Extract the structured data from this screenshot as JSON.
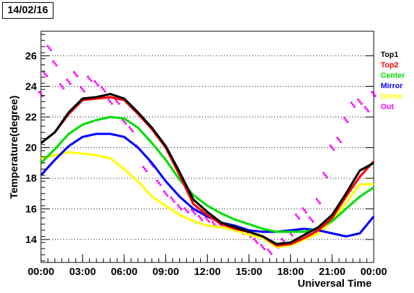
{
  "header": {
    "date": "14/02/16"
  },
  "chart_data": {
    "type": "line",
    "title": "",
    "xlabel": "Universal Time",
    "ylabel": "Temperature(degree)",
    "xlim": [
      0,
      24
    ],
    "ylim": [
      12.5,
      27.6
    ],
    "grid": "horizontal dotted",
    "legend_position": "right",
    "x_ticks": [
      0,
      3,
      6,
      9,
      12,
      15,
      18,
      21,
      24
    ],
    "x_tick_labels": [
      "00:00",
      "03:00",
      "06:00",
      "09:00",
      "12:00",
      "15:00",
      "18:00",
      "21:00",
      "00:00"
    ],
    "y_ticks": [
      14,
      16,
      18,
      20,
      22,
      24,
      26
    ],
    "y_tick_labels": [
      "14",
      "16",
      "18",
      "20",
      "22",
      "24",
      "26"
    ],
    "series": [
      {
        "name": "Top1",
        "color": "#000000",
        "points": [
          [
            0,
            20.3
          ],
          [
            1,
            21.0
          ],
          [
            2,
            22.3
          ],
          [
            3,
            23.2
          ],
          [
            4,
            23.3
          ],
          [
            5,
            23.5
          ],
          [
            6,
            23.2
          ],
          [
            7,
            22.3
          ],
          [
            8,
            21.3
          ],
          [
            9,
            20.1
          ],
          [
            10,
            18.4
          ],
          [
            11,
            16.6
          ],
          [
            12,
            15.8
          ],
          [
            13,
            15.1
          ],
          [
            14,
            14.8
          ],
          [
            15,
            14.5
          ],
          [
            16,
            14.2
          ],
          [
            17,
            13.7
          ],
          [
            18,
            13.8
          ],
          [
            19,
            14.3
          ],
          [
            20,
            14.8
          ],
          [
            21,
            15.6
          ],
          [
            22,
            17.0
          ],
          [
            23,
            18.5
          ],
          [
            24,
            19.0
          ]
        ]
      },
      {
        "name": "Top2",
        "color": "#ff0000",
        "points": [
          [
            0,
            20.3
          ],
          [
            1,
            21.0
          ],
          [
            2,
            22.2
          ],
          [
            3,
            23.1
          ],
          [
            4,
            23.2
          ],
          [
            5,
            23.3
          ],
          [
            6,
            23.1
          ],
          [
            7,
            22.2
          ],
          [
            8,
            21.2
          ],
          [
            9,
            20.0
          ],
          [
            10,
            18.2
          ],
          [
            11,
            16.3
          ],
          [
            12,
            15.6
          ],
          [
            13,
            15.0
          ],
          [
            14,
            14.7
          ],
          [
            15,
            14.5
          ],
          [
            16,
            14.2
          ],
          [
            17,
            13.6
          ],
          [
            18,
            13.7
          ],
          [
            19,
            14.1
          ],
          [
            20,
            14.6
          ],
          [
            21,
            15.4
          ],
          [
            22,
            16.8
          ],
          [
            23,
            18.1
          ],
          [
            24,
            19.1
          ]
        ]
      },
      {
        "name": "Center",
        "color": "#00dd00",
        "points": [
          [
            0,
            19.0
          ],
          [
            1,
            19.9
          ],
          [
            2,
            20.9
          ],
          [
            3,
            21.5
          ],
          [
            4,
            21.8
          ],
          [
            5,
            22.0
          ],
          [
            6,
            21.9
          ],
          [
            7,
            21.3
          ],
          [
            8,
            20.3
          ],
          [
            9,
            19.2
          ],
          [
            10,
            17.9
          ],
          [
            11,
            16.9
          ],
          [
            12,
            16.2
          ],
          [
            13,
            15.7
          ],
          [
            14,
            15.3
          ],
          [
            15,
            15.0
          ],
          [
            16,
            14.7
          ],
          [
            17,
            14.5
          ],
          [
            18,
            14.5
          ],
          [
            19,
            14.5
          ],
          [
            20,
            14.7
          ],
          [
            21,
            15.2
          ],
          [
            22,
            16.0
          ],
          [
            23,
            16.8
          ],
          [
            24,
            17.4
          ]
        ]
      },
      {
        "name": "Mirror",
        "color": "#0000ff",
        "points": [
          [
            0,
            18.2
          ],
          [
            1,
            19.2
          ],
          [
            2,
            20.1
          ],
          [
            3,
            20.7
          ],
          [
            4,
            20.9
          ],
          [
            5,
            20.9
          ],
          [
            6,
            20.7
          ],
          [
            7,
            20.0
          ],
          [
            8,
            19.0
          ],
          [
            9,
            17.8
          ],
          [
            10,
            16.8
          ],
          [
            11,
            16.0
          ],
          [
            12,
            15.5
          ],
          [
            13,
            15.1
          ],
          [
            14,
            14.9
          ],
          [
            15,
            14.6
          ],
          [
            16,
            14.5
          ],
          [
            17,
            14.5
          ],
          [
            18,
            14.6
          ],
          [
            19,
            14.7
          ],
          [
            20,
            14.6
          ],
          [
            21,
            14.4
          ],
          [
            22,
            14.2
          ],
          [
            23,
            14.4
          ],
          [
            24,
            15.5
          ]
        ]
      },
      {
        "name": "Dome",
        "color": "#ffff00",
        "points": [
          [
            0,
            19.3
          ],
          [
            1,
            19.5
          ],
          [
            2,
            19.7
          ],
          [
            3,
            19.6
          ],
          [
            4,
            19.5
          ],
          [
            5,
            19.3
          ],
          [
            6,
            18.6
          ],
          [
            7,
            17.8
          ],
          [
            8,
            16.8
          ],
          [
            9,
            16.2
          ],
          [
            10,
            15.6
          ],
          [
            11,
            15.2
          ],
          [
            12,
            14.9
          ],
          [
            13,
            14.8
          ],
          [
            14,
            14.6
          ],
          [
            15,
            14.3
          ],
          [
            16,
            14.1
          ],
          [
            17,
            13.5
          ],
          [
            18,
            13.6
          ],
          [
            19,
            14.0
          ],
          [
            20,
            14.4
          ],
          [
            21,
            15.2
          ],
          [
            22,
            16.4
          ],
          [
            23,
            17.6
          ],
          [
            24,
            17.6
          ]
        ]
      },
      {
        "name": "Out",
        "color": "#ff00ff",
        "style": "scatter",
        "points": [
          [
            0,
            23.5
          ],
          [
            0.3,
            24.8
          ],
          [
            0.6,
            26.5
          ],
          [
            1,
            25.5
          ],
          [
            1.5,
            24.0
          ],
          [
            2,
            24.3
          ],
          [
            2.5,
            24.8
          ],
          [
            3,
            23.8
          ],
          [
            3.5,
            24.5
          ],
          [
            4,
            24.2
          ],
          [
            4.5,
            23.8
          ],
          [
            5,
            23.0
          ],
          [
            5.5,
            23.0
          ],
          [
            6,
            21.7
          ],
          [
            6.5,
            21.2
          ],
          [
            7,
            20.0
          ],
          [
            7.5,
            18.6
          ],
          [
            8,
            18.9
          ],
          [
            8.5,
            17.7
          ],
          [
            9,
            17.0
          ],
          [
            9.5,
            16.6
          ],
          [
            10,
            16.1
          ],
          [
            10.5,
            15.9
          ],
          [
            11,
            15.8
          ],
          [
            11.5,
            15.4
          ],
          [
            12,
            15.3
          ],
          [
            12.5,
            15.0
          ],
          [
            13,
            14.9
          ],
          [
            13.5,
            14.9
          ],
          [
            14,
            14.7
          ],
          [
            14.5,
            14.5
          ],
          [
            15,
            14.3
          ],
          [
            15.5,
            13.9
          ],
          [
            16,
            13.5
          ],
          [
            16.5,
            13.2
          ],
          [
            17,
            13.6
          ],
          [
            17.5,
            13.9
          ],
          [
            18,
            14.4
          ],
          [
            18.5,
            15.5
          ],
          [
            19,
            15.9
          ],
          [
            19.5,
            15.3
          ],
          [
            20,
            16.5
          ],
          [
            20.5,
            18.2
          ],
          [
            21,
            20.0
          ],
          [
            21.5,
            20.5
          ],
          [
            22,
            21.8
          ],
          [
            22.5,
            22.8
          ],
          [
            23,
            23.0
          ],
          [
            23.5,
            22.5
          ],
          [
            24,
            23.5
          ]
        ]
      }
    ]
  }
}
